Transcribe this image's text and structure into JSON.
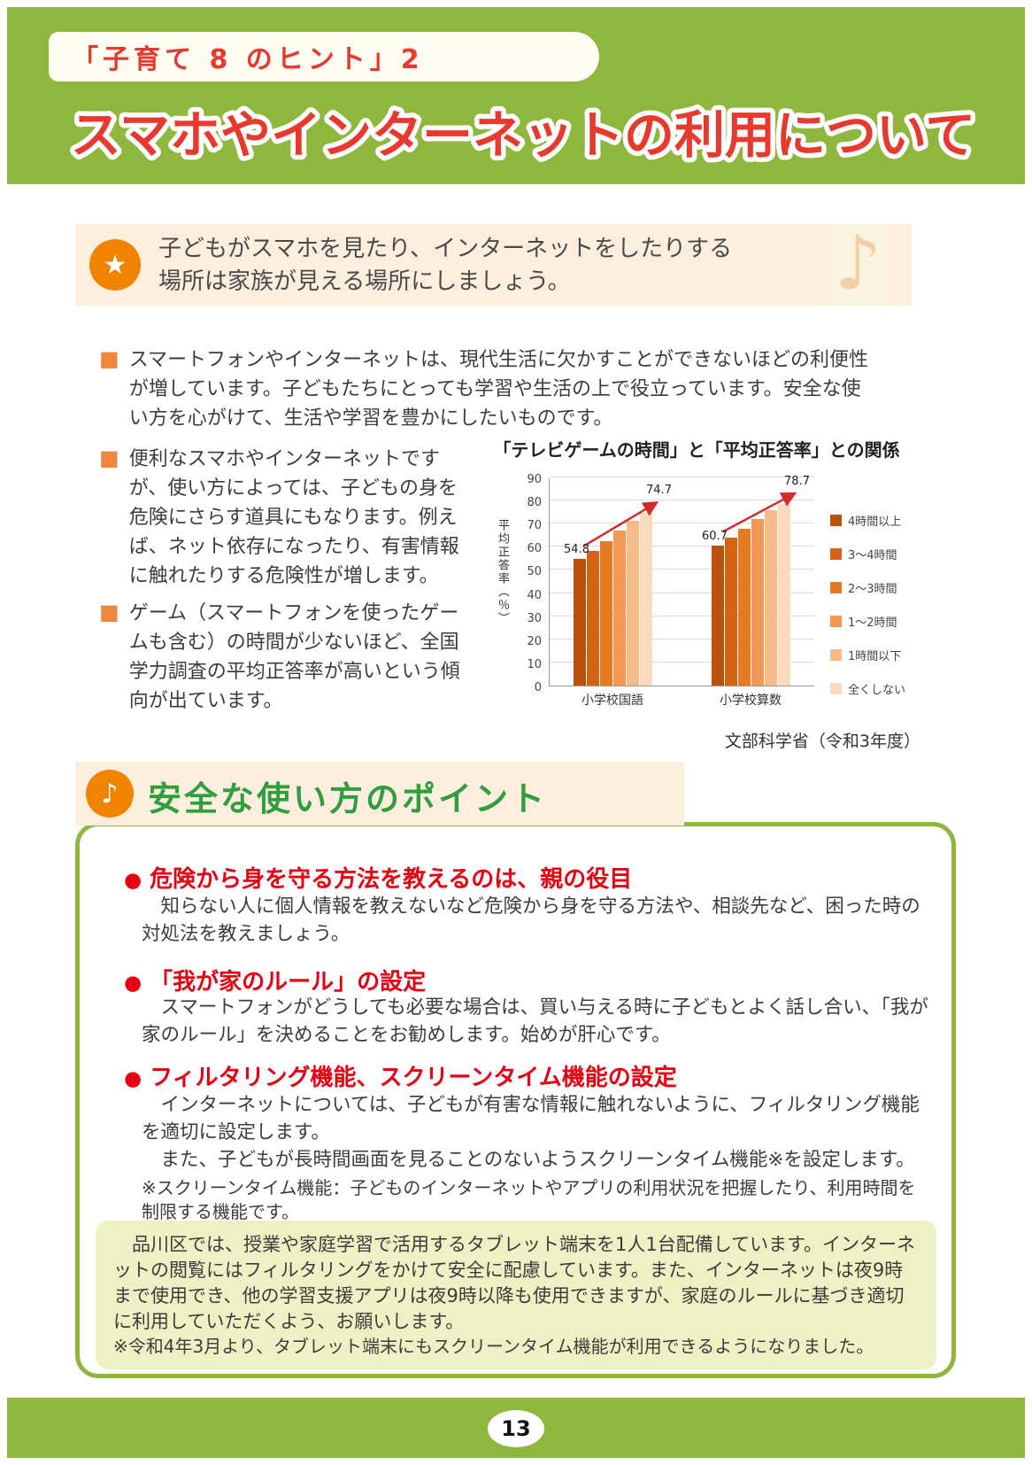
{
  "page": {
    "badge": "「子育て 8 のヒント」2",
    "title": "スマホやインターネットの利用について",
    "page_number": "13"
  },
  "icons": {
    "star": "★",
    "music_note": "♪",
    "bullet_square": "■",
    "bullet_circle": "●"
  },
  "colors": {
    "band_green": "#8fb73e",
    "title_red": "#e8392f",
    "heading_red": "#e60012",
    "accent_orange": "#f08300",
    "peach_bg": "#fdeedd",
    "info_bg": "#eef1c4",
    "heading_green": "#2f9e3f"
  },
  "highlight_box": {
    "lines": [
      "子どもがスマホを見たり、インターネットをしたりする",
      "場所は家族が見える場所にしましょう。"
    ]
  },
  "paragraphs": [
    {
      "text": "スマートフォンやインターネットは、現代生活に欠かすことができないほどの利便性が増しています。子どもたちにとっても学習や生活の上で役立っています。安全な使い方を心がけて、生活や学習を豊かにしたいものです。"
    },
    {
      "text": "便利なスマホやインターネットですが、使い方によっては、子どもの身を危険にさらす道具にもなります。例えば、ネット依存になったり、有害情報に触れたりする危険性が増します。"
    },
    {
      "text": "ゲーム（スマートフォンを使ったゲームも含む）の時間が少ないほど、全国学力調査の平均正答率が高いという傾向が出ています。"
    }
  ],
  "chart_data": {
    "type": "bar",
    "title": "「テレビゲームの時間」と「平均正答率」との関係",
    "ylabel": "平均正答率（％）",
    "ylim": [
      0,
      90
    ],
    "yticks": [
      0,
      10,
      20,
      30,
      40,
      50,
      60,
      70,
      80,
      90
    ],
    "categories": [
      "小学校国語",
      "小学校算数"
    ],
    "series": [
      {
        "name": "4時間以上",
        "color": "#bc500e",
        "values": [
          54.8,
          60.7
        ]
      },
      {
        "name": "3～4時間",
        "color": "#d26413",
        "values": [
          58.2,
          63.8
        ]
      },
      {
        "name": "2～3時間",
        "color": "#e67a24",
        "values": [
          62.6,
          67.8
        ]
      },
      {
        "name": "1～2時間",
        "color": "#f29a55",
        "values": [
          67.2,
          71.9
        ]
      },
      {
        "name": "1時間以下",
        "color": "#f7bb8a",
        "values": [
          71.3,
          75.8
        ]
      },
      {
        "name": "全くしない",
        "color": "#fad9bd",
        "values": [
          74.7,
          78.7
        ]
      }
    ],
    "data_label_series_indices": [
      0,
      5
    ],
    "legend_position": "right",
    "grid": true,
    "trend_arrows": true,
    "arrow_color": "#d62b28",
    "source": "文部科学省（令和3年度）"
  },
  "points_section": {
    "heading": "安全な使い方のポイント",
    "items": [
      {
        "title": "危険から身を守る方法を教えるのは、親の役目",
        "body": "　知らない人に個人情報を教えないなど危険から身を守る方法や、相談先など、困った時の対処法を教えましょう。"
      },
      {
        "title": "「我が家のルール」の設定",
        "body": "　スマートフォンがどうしても必要な場合は、買い与える時に子どもとよく話し合い、「我が家のルール」を決めることをお勧めします。始めが肝心です。"
      },
      {
        "title": "フィルタリング機能、スクリーンタイム機能の設定",
        "body": "　インターネットについては、子どもが有害な情報に触れないように、フィルタリング機能を適切に設定します。\n　また、子どもが長時間画面を見ることのないようスクリーンタイム機能※を設定します。",
        "note": "※スクリーンタイム機能：子どものインターネットやアプリの利用状況を把握したり、利用時間を制限する機能です。"
      }
    ]
  },
  "info_box": {
    "body": "　品川区では、授業や家庭学習で活用するタブレット端末を1人1台配備しています。インターネットの閲覧にはフィルタリングをかけて安全に配慮しています。また、インターネットは夜9時まで使用でき、他の学習支援アプリは夜9時以降も使用できますが、家庭のルールに基づき適切に利用していただくよう、お願いします。",
    "note": "※令和4年3月より、タブレット端末にもスクリーンタイム機能が利用できるようになりました。"
  }
}
